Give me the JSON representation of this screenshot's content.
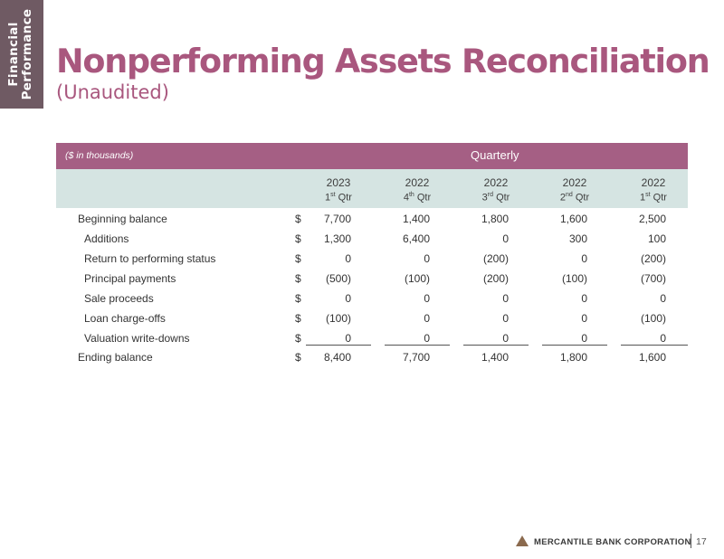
{
  "side_tab": {
    "line1": "Financial",
    "line2": "Performance"
  },
  "title": "Nonperforming Assets Reconciliation",
  "subtitle": "(Unaudited)",
  "table": {
    "units_label": "($ in thousands)",
    "group_label": "Quarterly",
    "columns": [
      {
        "year": "2023",
        "q_num": "1",
        "q_sup": "st",
        "q_suffix": "Qtr"
      },
      {
        "year": "2022",
        "q_num": "4",
        "q_sup": "th",
        "q_suffix": "Qtr"
      },
      {
        "year": "2022",
        "q_num": "3",
        "q_sup": "rd",
        "q_suffix": "Qtr"
      },
      {
        "year": "2022",
        "q_num": "2",
        "q_sup": "nd",
        "q_suffix": "Qtr"
      },
      {
        "year": "2022",
        "q_num": "1",
        "q_sup": "st",
        "q_suffix": "Qtr"
      }
    ],
    "rows": [
      {
        "label": "Beginning balance",
        "dollar": "$",
        "values": [
          "7,700",
          "1,400",
          "1,800",
          "1,600",
          "2,500"
        ]
      },
      {
        "label": "Additions",
        "dollar": "$",
        "values": [
          "1,300",
          "6,400",
          "0",
          "300",
          "100"
        ]
      },
      {
        "label": "Return to performing status",
        "dollar": "$",
        "values": [
          "0",
          "0",
          "(200)",
          "0",
          "(200)"
        ]
      },
      {
        "label": "Principal payments",
        "dollar": "$",
        "values": [
          "(500)",
          "(100)",
          "(200)",
          "(100)",
          "(700)"
        ]
      },
      {
        "label": "Sale proceeds",
        "dollar": "$",
        "values": [
          "0",
          "0",
          "0",
          "0",
          "0"
        ]
      },
      {
        "label": "Loan charge-offs",
        "dollar": "$",
        "values": [
          "(100)",
          "0",
          "0",
          "0",
          "(100)"
        ]
      },
      {
        "label": "Valuation write-downs",
        "dollar": "$",
        "values": [
          "0",
          "0",
          "0",
          "0",
          "0"
        ]
      },
      {
        "label": "Ending balance",
        "dollar": "$",
        "values": [
          "8,400",
          "7,700",
          "1,400",
          "1,800",
          "1,600"
        ]
      }
    ]
  },
  "footer": {
    "company": "MERCANTILE BANK CORPORATION",
    "page_number": "17"
  },
  "colors": {
    "title": "#a9577e",
    "header_band": "#a55f84",
    "column_band": "#d5e4e2",
    "side_tab": "#6f5a63",
    "logo": "#8b6a4e"
  }
}
